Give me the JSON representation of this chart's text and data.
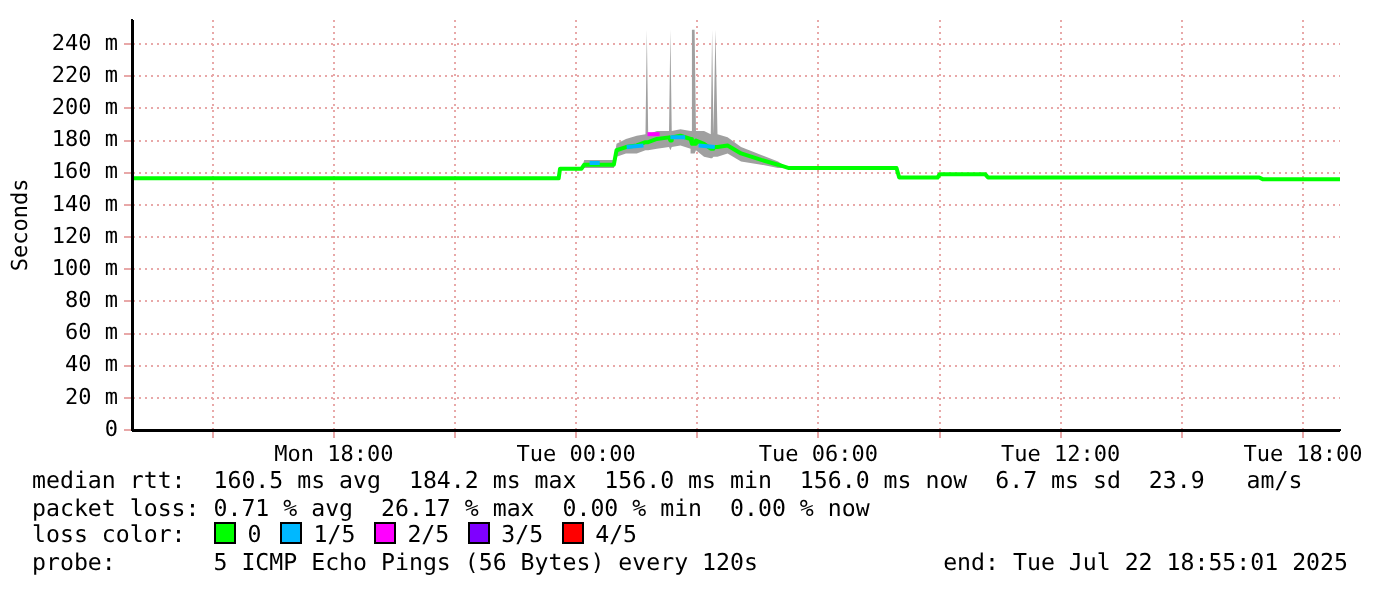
{
  "chart_data": {
    "type": "line",
    "ylabel": "Seconds",
    "legend_title": "loss color:",
    "legend": "bottom",
    "grid": true,
    "marker": "none",
    "line_style": "solid",
    "xlim": [
      "2025-07-21T13:00",
      "2025-07-22T18:55"
    ],
    "xticks": [
      {
        "value": "2025-07-21T15:00",
        "label": null
      },
      {
        "value": "2025-07-21T18:00",
        "label": "Mon 18:00"
      },
      {
        "value": "2025-07-21T21:00",
        "label": null
      },
      {
        "value": "2025-07-22T00:00",
        "label": "Tue 00:00"
      },
      {
        "value": "2025-07-22T03:00",
        "label": null
      },
      {
        "value": "2025-07-22T06:00",
        "label": "Tue 06:00"
      },
      {
        "value": "2025-07-22T09:00",
        "label": null
      },
      {
        "value": "2025-07-22T12:00",
        "label": "Tue 12:00"
      },
      {
        "value": "2025-07-22T15:00",
        "label": null
      },
      {
        "value": "2025-07-22T18:00",
        "label": "Tue 18:00"
      }
    ],
    "ylim": [
      0,
      255
    ],
    "yticks": [
      0,
      {
        "value": 20,
        "label": "20 m"
      },
      {
        "value": 40,
        "label": "40 m"
      },
      {
        "value": 60,
        "label": "60 m"
      },
      {
        "value": 80,
        "label": "80 m"
      },
      {
        "value": 100,
        "label": "100 m"
      },
      {
        "value": 120,
        "label": "120 m"
      },
      {
        "value": 140,
        "label": "140 m"
      },
      {
        "value": 160,
        "label": "160 m"
      },
      {
        "value": 180,
        "label": "180 m"
      },
      {
        "value": 200,
        "label": "200 m"
      },
      {
        "value": 220,
        "label": "220 m"
      },
      {
        "value": 240,
        "label": "240 m"
      }
    ],
    "series": [
      {
        "name": "0",
        "color": "#00ff00",
        "x": [
          "2025-07-21T13:00",
          "2025-07-21T23:34",
          "2025-07-21T23:36",
          "2025-07-22T00:08",
          "2025-07-22T00:12",
          "2025-07-22T00:56",
          "2025-07-22T01:00",
          "2025-07-22T01:14",
          "2025-07-22T01:30",
          "2025-07-22T01:43",
          "2025-07-22T01:45",
          "2025-07-22T01:47",
          "2025-07-22T02:00",
          "2025-07-22T02:18",
          "2025-07-22T02:20",
          "2025-07-22T02:22",
          "2025-07-22T02:35",
          "2025-07-22T02:50",
          "2025-07-22T02:52",
          "2025-07-22T02:56",
          "2025-07-22T02:58",
          "2025-07-22T03:10",
          "2025-07-22T03:20",
          "2025-07-22T03:22",
          "2025-07-22T03:24",
          "2025-07-22T03:27",
          "2025-07-22T03:30",
          "2025-07-22T03:45",
          "2025-07-22T04:05",
          "2025-07-22T04:35",
          "2025-07-22T05:00",
          "2025-07-22T05:15",
          "2025-07-22T07:56",
          "2025-07-22T08:00",
          "2025-07-22T08:57",
          "2025-07-22T09:00",
          "2025-07-22T10:08",
          "2025-07-22T10:12",
          "2025-07-22T16:55",
          "2025-07-22T17:00",
          "2025-07-22T18:55"
        ],
        "values": [
          156.5,
          156.5,
          162.5,
          162.5,
          165,
          165,
          174,
          176,
          177,
          179,
          179,
          179,
          181,
          182,
          180,
          182,
          183,
          181,
          178,
          178,
          180,
          178,
          175,
          175,
          176,
          176,
          176,
          177,
          172,
          168,
          165,
          163,
          163,
          157,
          157,
          159,
          159,
          157,
          157,
          156,
          156
        ],
        "lower": [
          156.5,
          156.5,
          162.5,
          162.5,
          163,
          163,
          170,
          172,
          172,
          174,
          174,
          174,
          175,
          176,
          174,
          176,
          177,
          175,
          172,
          172,
          174,
          170,
          169,
          169,
          170,
          170,
          170,
          172,
          167,
          165,
          163,
          163,
          163,
          157,
          157,
          159,
          159,
          157,
          157,
          156,
          156
        ],
        "upper": [
          156.5,
          156.5,
          162.5,
          162.5,
          168,
          168,
          178,
          181,
          183,
          184,
          249,
          184,
          186,
          186,
          249,
          186,
          187,
          186,
          249,
          249,
          186,
          186,
          184,
          249,
          184,
          249,
          184,
          182,
          176,
          171,
          167,
          163,
          163,
          157,
          157,
          159,
          159,
          157,
          157,
          156,
          156
        ]
      },
      {
        "name": "1/5",
        "color": "#00b8ff",
        "x": [
          "2025-07-22T00:20",
          "2025-07-22T00:35",
          "2025-07-22T00:50",
          "2025-07-22T01:15",
          "2025-07-22T01:40",
          "2025-07-22T02:08",
          "2025-07-22T02:20",
          "2025-07-22T02:42",
          "2025-07-22T02:50",
          "2025-07-22T03:02",
          "2025-07-22T03:26"
        ],
        "values": [
          166,
          166,
          null,
          176,
          177,
          null,
          182,
          182,
          null,
          177,
          176
        ]
      },
      {
        "name": "2/5",
        "color": "#ff00ff",
        "x": [
          "2025-07-22T01:46",
          "2025-07-22T02:04"
        ],
        "values": [
          184,
          184
        ]
      },
      {
        "name": "3/5",
        "color": "#7f00ff"
      },
      {
        "name": "4/5",
        "color": "#ff0000"
      }
    ],
    "annotations": [
      "median rtt:  160.5 ms avg  184.2 ms max  156.0 ms min  156.0 ms now  6.7 ms sd  23.9   am/s",
      "packet loss: 0.71 % avg  26.17 % max  0.00 % min  0.00 % now",
      "probe:       5 ICMP Echo Pings (56 Bytes) every 120s",
      "end: Tue Jul 22 18:55:01 2025"
    ]
  }
}
